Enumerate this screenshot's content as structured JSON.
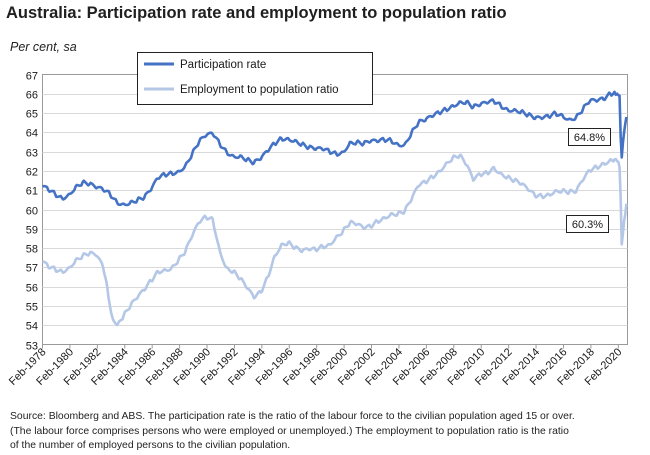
{
  "title": "Australia: Participation rate and employment to population ratio",
  "subtitle": "Per cent, sa",
  "source_lines": [
    "Source: Bloomberg and ABS.  The participation rate is the ratio of the labour force to the civilian population aged 15 or over.",
    "(The labour force comprises persons who were employed or unemployed.)   The employment to population ratio is the ratio",
    "of the number of employed persons to the civilian population."
  ],
  "chart_data": {
    "type": "line",
    "title": "Australia: Participation rate and employment to population ratio",
    "ylabel": "Per cent, sa",
    "ylim": [
      53,
      67
    ],
    "yticks": [
      53,
      54,
      55,
      56,
      57,
      58,
      59,
      60,
      61,
      62,
      63,
      64,
      65,
      66,
      67
    ],
    "xlim": [
      1978.08,
      2020.75
    ],
    "xticks": [
      {
        "label": "Feb-1978",
        "x": 1978.08
      },
      {
        "label": "Feb-1980",
        "x": 1980.08
      },
      {
        "label": "Feb-1982",
        "x": 1982.08
      },
      {
        "label": "Feb-1984",
        "x": 1984.08
      },
      {
        "label": "Feb-1986",
        "x": 1986.08
      },
      {
        "label": "Feb-1988",
        "x": 1988.08
      },
      {
        "label": "Feb-1990",
        "x": 1990.08
      },
      {
        "label": "Feb-1992",
        "x": 1992.08
      },
      {
        "label": "Feb-1994",
        "x": 1994.08
      },
      {
        "label": "Feb-1996",
        "x": 1996.08
      },
      {
        "label": "Feb-1998",
        "x": 1998.08
      },
      {
        "label": "Feb-2000",
        "x": 2000.08
      },
      {
        "label": "Feb-2002",
        "x": 2002.08
      },
      {
        "label": "Feb-2004",
        "x": 2004.08
      },
      {
        "label": "Feb-2006",
        "x": 2006.08
      },
      {
        "label": "Feb-2008",
        "x": 2008.08
      },
      {
        "label": "Feb-2010",
        "x": 2010.08
      },
      {
        "label": "Feb-2012",
        "x": 2012.08
      },
      {
        "label": "Feb-2014",
        "x": 2014.08
      },
      {
        "label": "Feb-2016",
        "x": 2016.08
      },
      {
        "label": "Feb-2018",
        "x": 2018.08
      },
      {
        "label": "Feb-2020",
        "x": 2020.08
      }
    ],
    "grid": true,
    "legend_position": "top-left",
    "series": [
      {
        "name": "Participation rate",
        "color": "#4472c4",
        "end_label": "64.8%",
        "points": [
          [
            1978.08,
            61.2
          ],
          [
            1978.5,
            61.0
          ],
          [
            1979.0,
            60.8
          ],
          [
            1979.5,
            60.6
          ],
          [
            1980.0,
            60.8
          ],
          [
            1980.5,
            61.2
          ],
          [
            1981.0,
            61.4
          ],
          [
            1981.5,
            61.3
          ],
          [
            1982.0,
            61.1
          ],
          [
            1982.5,
            61.0
          ],
          [
            1983.0,
            60.8
          ],
          [
            1983.5,
            60.4
          ],
          [
            1984.0,
            60.3
          ],
          [
            1984.5,
            60.4
          ],
          [
            1985.0,
            60.5
          ],
          [
            1985.5,
            60.6
          ],
          [
            1986.0,
            61.0
          ],
          [
            1986.5,
            61.6
          ],
          [
            1987.0,
            61.8
          ],
          [
            1987.5,
            61.9
          ],
          [
            1988.0,
            62.0
          ],
          [
            1988.5,
            62.3
          ],
          [
            1989.0,
            62.9
          ],
          [
            1989.5,
            63.5
          ],
          [
            1990.0,
            63.8
          ],
          [
            1990.5,
            63.9
          ],
          [
            1991.0,
            63.4
          ],
          [
            1991.5,
            63.0
          ],
          [
            1992.0,
            62.8
          ],
          [
            1992.5,
            62.8
          ],
          [
            1993.0,
            62.6
          ],
          [
            1993.5,
            62.4
          ],
          [
            1994.0,
            62.6
          ],
          [
            1994.5,
            63.0
          ],
          [
            1995.0,
            63.4
          ],
          [
            1995.5,
            63.7
          ],
          [
            1996.0,
            63.7
          ],
          [
            1996.5,
            63.6
          ],
          [
            1997.0,
            63.4
          ],
          [
            1997.5,
            63.2
          ],
          [
            1998.0,
            63.1
          ],
          [
            1998.5,
            63.1
          ],
          [
            1999.0,
            63.0
          ],
          [
            1999.5,
            62.9
          ],
          [
            2000.0,
            63.0
          ],
          [
            2000.5,
            63.5
          ],
          [
            2001.0,
            63.5
          ],
          [
            2001.5,
            63.4
          ],
          [
            2002.0,
            63.5
          ],
          [
            2002.5,
            63.5
          ],
          [
            2003.0,
            63.6
          ],
          [
            2003.5,
            63.6
          ],
          [
            2004.0,
            63.4
          ],
          [
            2004.5,
            63.4
          ],
          [
            2005.0,
            64.0
          ],
          [
            2005.5,
            64.5
          ],
          [
            2006.0,
            64.6
          ],
          [
            2006.5,
            64.8
          ],
          [
            2007.0,
            65.0
          ],
          [
            2007.5,
            65.2
          ],
          [
            2008.0,
            65.4
          ],
          [
            2008.5,
            65.6
          ],
          [
            2009.0,
            65.6
          ],
          [
            2009.5,
            65.3
          ],
          [
            2010.0,
            65.4
          ],
          [
            2010.5,
            65.5
          ],
          [
            2011.0,
            65.6
          ],
          [
            2011.5,
            65.4
          ],
          [
            2012.0,
            65.2
          ],
          [
            2012.5,
            65.2
          ],
          [
            2013.0,
            65.1
          ],
          [
            2013.5,
            64.9
          ],
          [
            2014.0,
            64.7
          ],
          [
            2014.5,
            64.7
          ],
          [
            2015.0,
            64.8
          ],
          [
            2015.5,
            65.0
          ],
          [
            2016.0,
            64.9
          ],
          [
            2016.5,
            64.7
          ],
          [
            2017.0,
            64.8
          ],
          [
            2017.5,
            65.2
          ],
          [
            2018.0,
            65.6
          ],
          [
            2018.5,
            65.6
          ],
          [
            2019.0,
            65.7
          ],
          [
            2019.5,
            66.0
          ],
          [
            2019.8,
            66.1
          ],
          [
            2020.0,
            66.0
          ],
          [
            2020.17,
            65.9
          ],
          [
            2020.25,
            63.8
          ],
          [
            2020.33,
            62.7
          ],
          [
            2020.5,
            64.0
          ],
          [
            2020.67,
            64.8
          ]
        ]
      },
      {
        "name": "Employment to population ratio",
        "color": "#b4c7e7",
        "end_label": "60.3%",
        "points": [
          [
            1978.08,
            57.3
          ],
          [
            1978.5,
            57.0
          ],
          [
            1979.0,
            56.9
          ],
          [
            1979.5,
            56.8
          ],
          [
            1980.0,
            57.0
          ],
          [
            1980.5,
            57.4
          ],
          [
            1981.0,
            57.6
          ],
          [
            1981.5,
            57.7
          ],
          [
            1982.0,
            57.6
          ],
          [
            1982.5,
            57.0
          ],
          [
            1982.8,
            56.0
          ],
          [
            1983.0,
            55.0
          ],
          [
            1983.3,
            54.2
          ],
          [
            1983.6,
            54.1
          ],
          [
            1984.0,
            54.5
          ],
          [
            1984.5,
            55.0
          ],
          [
            1985.0,
            55.4
          ],
          [
            1985.5,
            55.8
          ],
          [
            1986.0,
            56.3
          ],
          [
            1986.5,
            56.8
          ],
          [
            1987.0,
            56.9
          ],
          [
            1987.5,
            57.0
          ],
          [
            1988.0,
            57.4
          ],
          [
            1988.5,
            57.8
          ],
          [
            1989.0,
            58.6
          ],
          [
            1989.5,
            59.3
          ],
          [
            1990.0,
            59.6
          ],
          [
            1990.5,
            59.5
          ],
          [
            1991.0,
            57.9
          ],
          [
            1991.5,
            57.0
          ],
          [
            1992.0,
            56.8
          ],
          [
            1992.5,
            56.4
          ],
          [
            1993.0,
            55.9
          ],
          [
            1993.5,
            55.4
          ],
          [
            1994.0,
            55.7
          ],
          [
            1994.5,
            56.5
          ],
          [
            1995.0,
            57.6
          ],
          [
            1995.5,
            58.2
          ],
          [
            1996.0,
            58.3
          ],
          [
            1996.5,
            58.0
          ],
          [
            1997.0,
            57.8
          ],
          [
            1997.5,
            57.9
          ],
          [
            1998.0,
            57.9
          ],
          [
            1998.5,
            58.1
          ],
          [
            1999.0,
            58.2
          ],
          [
            1999.5,
            58.6
          ],
          [
            2000.0,
            58.9
          ],
          [
            2000.5,
            59.3
          ],
          [
            2001.0,
            59.2
          ],
          [
            2001.5,
            59.0
          ],
          [
            2002.0,
            59.1
          ],
          [
            2002.5,
            59.4
          ],
          [
            2003.0,
            59.6
          ],
          [
            2003.5,
            59.8
          ],
          [
            2004.0,
            59.8
          ],
          [
            2004.5,
            59.9
          ],
          [
            2005.0,
            60.5
          ],
          [
            2005.5,
            61.2
          ],
          [
            2006.0,
            61.4
          ],
          [
            2006.5,
            61.7
          ],
          [
            2007.0,
            62.0
          ],
          [
            2007.5,
            62.4
          ],
          [
            2008.0,
            62.7
          ],
          [
            2008.5,
            62.8
          ],
          [
            2009.0,
            62.3
          ],
          [
            2009.5,
            61.5
          ],
          [
            2010.0,
            61.8
          ],
          [
            2010.5,
            61.9
          ],
          [
            2011.0,
            62.2
          ],
          [
            2011.5,
            61.9
          ],
          [
            2012.0,
            61.7
          ],
          [
            2012.5,
            61.5
          ],
          [
            2013.0,
            61.3
          ],
          [
            2013.5,
            61.0
          ],
          [
            2014.0,
            60.7
          ],
          [
            2014.5,
            60.7
          ],
          [
            2015.0,
            60.8
          ],
          [
            2015.5,
            61.0
          ],
          [
            2016.0,
            61.0
          ],
          [
            2016.5,
            60.9
          ],
          [
            2017.0,
            60.9
          ],
          [
            2017.5,
            61.5
          ],
          [
            2018.0,
            62.0
          ],
          [
            2018.5,
            62.2
          ],
          [
            2019.0,
            62.4
          ],
          [
            2019.5,
            62.6
          ],
          [
            2019.8,
            62.6
          ],
          [
            2020.0,
            62.5
          ],
          [
            2020.17,
            62.2
          ],
          [
            2020.25,
            60.6
          ],
          [
            2020.33,
            58.2
          ],
          [
            2020.5,
            59.4
          ],
          [
            2020.67,
            60.3
          ]
        ]
      }
    ]
  }
}
